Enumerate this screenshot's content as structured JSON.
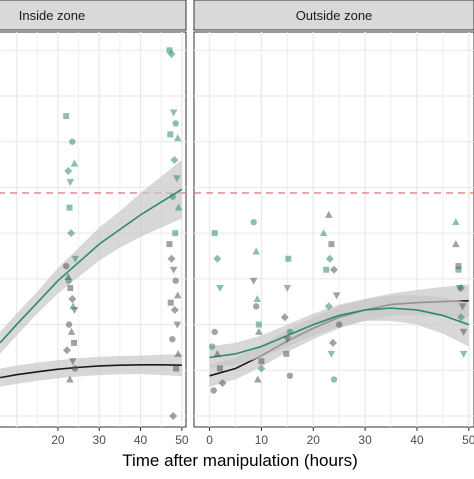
{
  "chart_data": {
    "type": "scatter",
    "xlabel": "Time after manipulation (hours)",
    "xlim": [
      -3,
      51
    ],
    "ylim": [
      0,
      100
    ],
    "grid": true,
    "colors": {
      "green": "#2e8b6b",
      "black": "#1a1a1a",
      "ref_line": "#e08080",
      "ribbon": "#c8c8c8",
      "strip_bg": "#d9d9d9",
      "panel_bg": "#ebebeb"
    },
    "reference_y": 56,
    "panels": [
      {
        "title": "Inside zone",
        "x_ticks": [
          20,
          30,
          40,
          50
        ],
        "green_fit": {
          "x": [
            6,
            10,
            15,
            20,
            25,
            30,
            35,
            40,
            45,
            50
          ],
          "y": [
            15,
            20,
            26,
            32,
            37,
            42,
            46,
            50,
            53.5,
            57
          ],
          "ci": [
            3,
            3,
            3,
            3.5,
            4,
            4.5,
            5,
            6,
            7,
            8
          ]
        },
        "black_fit": {
          "x": [
            6,
            10,
            15,
            20,
            25,
            30,
            35,
            40,
            45,
            50
          ],
          "y": [
            5.5,
            6.3,
            7.1,
            7.8,
            8.3,
            8.7,
            8.9,
            9.0,
            9.0,
            8.9
          ],
          "ci": [
            2.5,
            2.5,
            2.5,
            2.5,
            2.5,
            2.5,
            2.5,
            2.5,
            2.8,
            3
          ]
        },
        "green_points": {
          "x": [
            22,
            22.5,
            23,
            23.5,
            24,
            22.8,
            23.2,
            24.2,
            22.6,
            23.7,
            47,
            47.5,
            48,
            48.5,
            49,
            47.2,
            48.2,
            48.8,
            47.8,
            49.2,
            48.4
          ],
          "y": [
            77,
            62,
            59,
            70,
            64,
            52,
            45,
            38,
            32,
            25,
            95,
            94,
            78,
            75,
            71,
            72,
            65,
            60,
            55,
            52,
            45
          ]
        },
        "gray_points": {
          "x": [
            22,
            22.5,
            23,
            23.5,
            24,
            22.7,
            23.3,
            23.9,
            22.2,
            23.6,
            24.1,
            22.9,
            47,
            47.5,
            48,
            48.5,
            49,
            47.3,
            48.3,
            48.9,
            47.7,
            49.1,
            48.6,
            47.9
          ],
          "y": [
            36,
            33,
            30,
            27,
            24,
            20,
            18,
            15,
            13,
            10,
            8,
            5,
            42,
            38,
            35,
            32,
            28,
            26,
            24,
            20,
            16,
            12,
            8,
            -5
          ]
        }
      },
      {
        "title": "Outside zone",
        "x_ticks": [
          0,
          10,
          20,
          30,
          40,
          50
        ],
        "green_fit": {
          "x": [
            0,
            5,
            10,
            15,
            20,
            25,
            30,
            35,
            40,
            45,
            50
          ],
          "y": [
            11,
            12,
            14,
            17,
            20,
            22.5,
            24,
            24.5,
            24,
            22.5,
            20
          ],
          "ci": [
            3,
            3,
            3,
            3,
            3,
            3,
            3,
            3.5,
            4,
            5,
            6
          ]
        },
        "black_fit": {
          "x": [
            0,
            5,
            10,
            15,
            20,
            25,
            30,
            35,
            40,
            45,
            50
          ],
          "y": [
            6,
            8,
            11.5,
            15.5,
            19,
            22,
            24,
            25.5,
            26,
            26.3,
            26.5
          ],
          "ci": [
            3,
            3,
            3,
            3,
            3,
            3,
            3,
            3,
            3.5,
            4,
            4.5
          ]
        },
        "green_points": {
          "x": [
            1,
            1.5,
            2,
            8.5,
            9,
            9.5,
            10,
            15,
            15.5,
            22,
            22.5,
            23,
            23.5,
            24,
            47.5,
            48,
            48.5,
            49,
            0.5,
            9.2,
            15.2,
            23.2,
            48.2
          ],
          "y": [
            45,
            38,
            30,
            48,
            40,
            20,
            8,
            30,
            18,
            45,
            35,
            25,
            12,
            5,
            48,
            35,
            22,
            12,
            14,
            27,
            38,
            38,
            30
          ],
          "shape": "mixed"
        },
        "gray_points": {
          "x": [
            1,
            1.5,
            2,
            2.5,
            8.5,
            9,
            9.5,
            10,
            14.5,
            15,
            15.5,
            23,
            23.5,
            24,
            24.5,
            25,
            47.5,
            48,
            48.5,
            49,
            0.8,
            9.3,
            14.8,
            23.8,
            48.8
          ],
          "y": [
            18,
            12,
            8,
            4,
            32,
            25,
            18,
            10,
            22,
            16,
            6,
            50,
            42,
            35,
            28,
            20,
            42,
            36,
            30,
            18,
            2,
            5,
            12,
            15,
            25
          ]
        }
      }
    ]
  }
}
